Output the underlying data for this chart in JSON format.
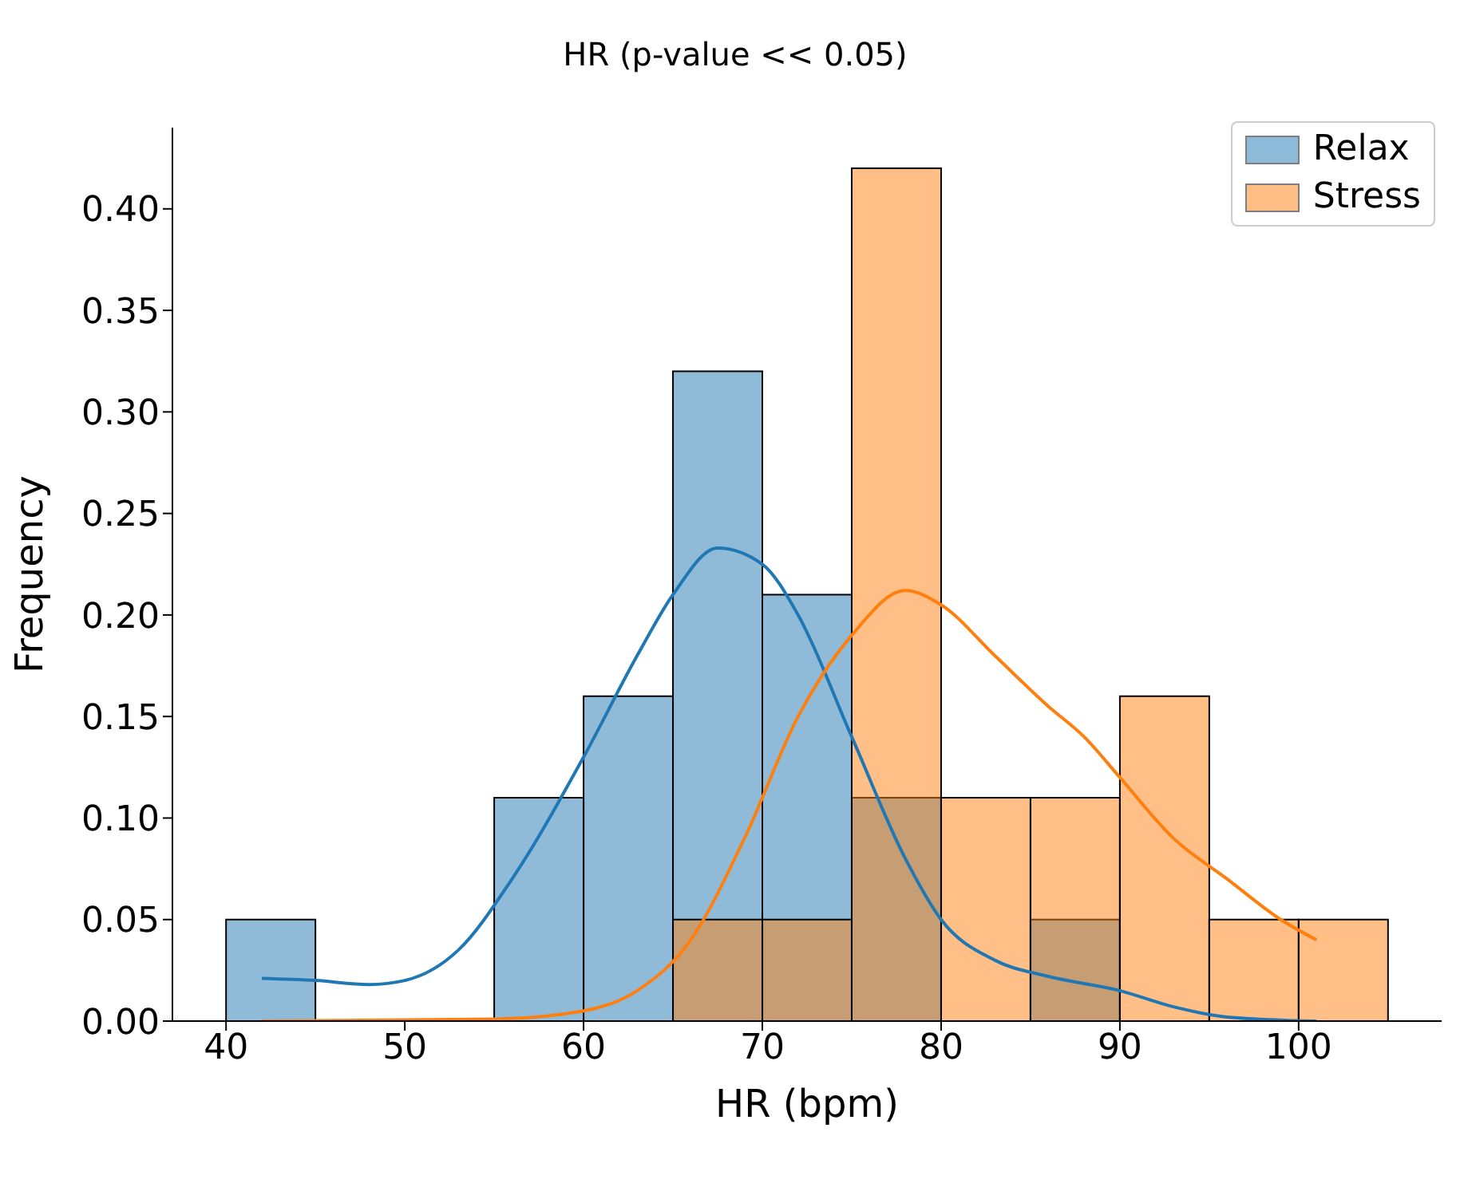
{
  "chart_data": {
    "type": "histogram",
    "title": "HR (p-value << 0.05)",
    "xlabel": "HR (bpm)",
    "ylabel": "Frequency",
    "bins": [
      40,
      45,
      50,
      55,
      60,
      65,
      70,
      75,
      80,
      85,
      90,
      95,
      100,
      105
    ],
    "xlim": [
      37,
      108
    ],
    "xticks": [
      40,
      50,
      60,
      70,
      80,
      90,
      100
    ],
    "ylim": [
      0,
      0.44
    ],
    "yticks": [
      {
        "value": 0,
        "label": "0.00"
      },
      {
        "value": 0.05,
        "label": "0.05"
      },
      {
        "value": 0.1,
        "label": "0.10"
      },
      {
        "value": 0.15,
        "label": "0.15"
      },
      {
        "value": 0.2,
        "label": "0.20"
      },
      {
        "value": 0.25,
        "label": "0.25"
      },
      {
        "value": 0.3,
        "label": "0.30"
      },
      {
        "value": 0.35,
        "label": "0.35"
      },
      {
        "value": 0.4,
        "label": "0.40"
      }
    ],
    "legend": "top right",
    "grid": false,
    "series": [
      {
        "name": "Relax",
        "color": "#1f77b4",
        "values": [
          0.05,
          0,
          0,
          0.11,
          0.16,
          0.32,
          0.21,
          0.11,
          0,
          0.05,
          0,
          0,
          0
        ]
      },
      {
        "name": "Stress",
        "color": "#ff7f0e",
        "values": [
          0,
          0,
          0,
          0,
          0,
          0.05,
          0.05,
          0.42,
          0.11,
          0.11,
          0.16,
          0.05,
          0.05
        ]
      },
      {
        "type": "line",
        "color": "#1f77b4",
        "x": [
          42,
          45,
          48,
          50,
          53,
          56,
          60,
          63,
          65,
          67.5,
          70,
          72,
          75,
          78,
          80,
          83,
          86,
          90,
          93,
          96,
          101
        ],
        "values": [
          0.021,
          0.02,
          0.018,
          0.02,
          0.035,
          0.07,
          0.13,
          0.18,
          0.21,
          0.233,
          0.225,
          0.2,
          0.14,
          0.08,
          0.05,
          0.03,
          0.022,
          0.015,
          0.007,
          0.002,
          0
        ]
      },
      {
        "type": "line",
        "color": "#ff7f0e",
        "x": [
          42,
          55,
          60,
          63,
          66,
          69,
          72,
          75,
          78,
          80,
          83,
          86,
          88,
          90,
          93,
          96,
          99,
          101
        ],
        "values": [
          0,
          0.001,
          0.005,
          0.015,
          0.04,
          0.09,
          0.15,
          0.19,
          0.212,
          0.205,
          0.18,
          0.155,
          0.14,
          0.12,
          0.09,
          0.07,
          0.05,
          0.04
        ]
      }
    ]
  }
}
